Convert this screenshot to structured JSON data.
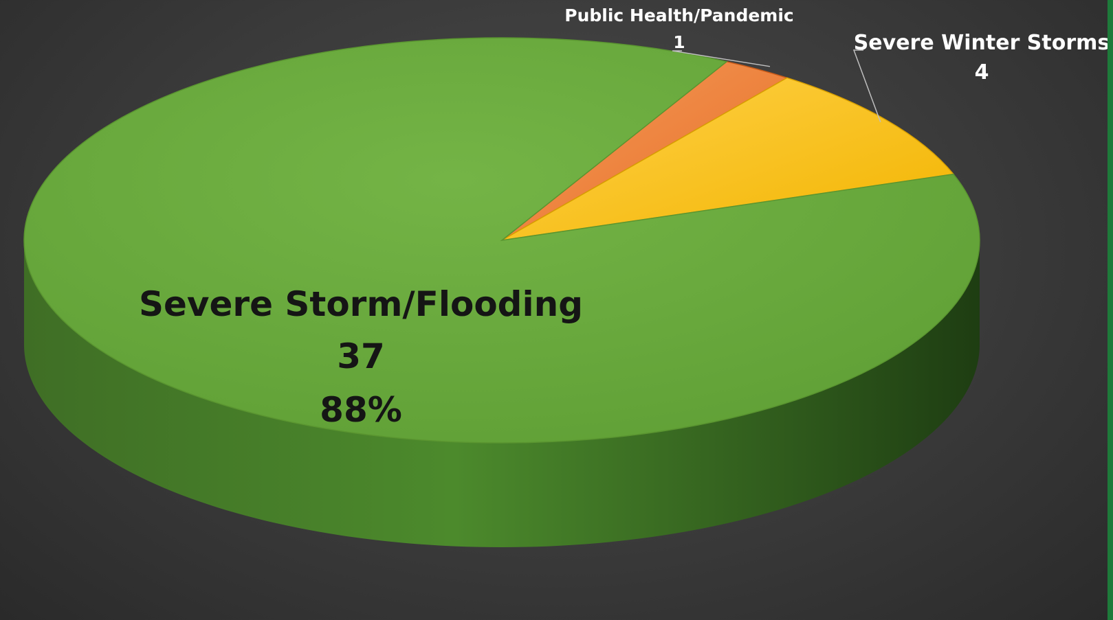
{
  "chart_data": {
    "type": "pie",
    "style": "3d",
    "categories": [
      "Severe Storm/Flooding",
      "Public Health/Pandemic",
      "Severe Winter Storms"
    ],
    "values": [
      37,
      1,
      4
    ],
    "percent_labels": [
      "88%",
      "",
      ""
    ],
    "colors": [
      "#6aab3b",
      "#ed7d31",
      "#ffc000"
    ],
    "labels": [
      {
        "name": "Severe Storm/Flooding",
        "value": "37",
        "percent": "88%"
      },
      {
        "name": "Public Health/Pandemic",
        "value": "1"
      },
      {
        "name": "Severe Winter Storms",
        "value": "4"
      }
    ],
    "title": "",
    "legend": "none"
  },
  "theme": {
    "background": "#3c3c3c",
    "accent": "#1e7a3a",
    "label_dark": "#151515",
    "label_light": "#ffffff",
    "leader_line": "#bfbfbf"
  }
}
